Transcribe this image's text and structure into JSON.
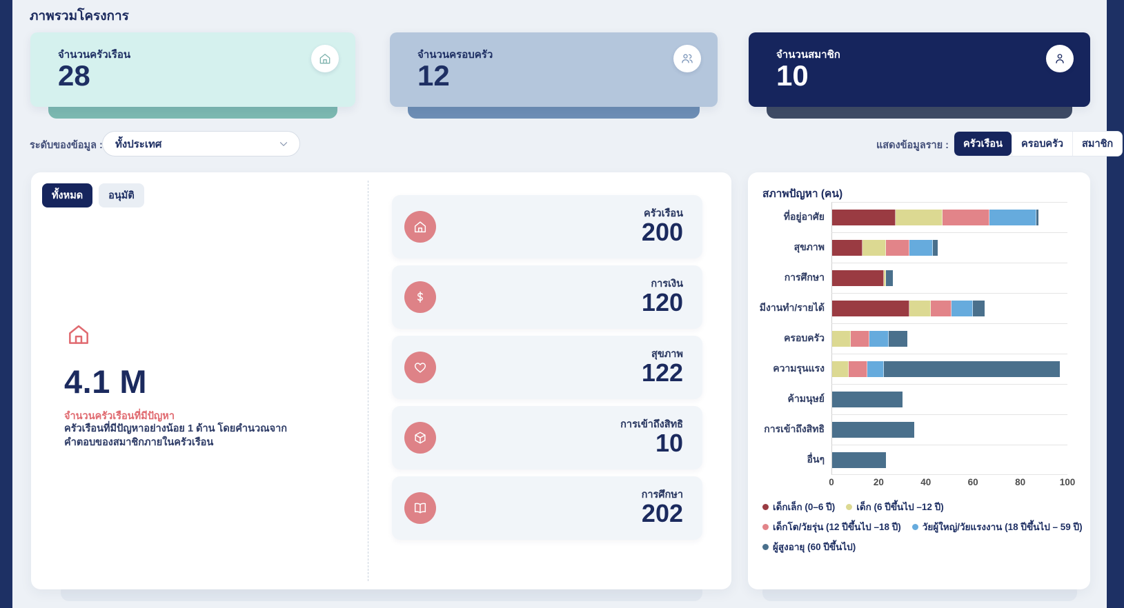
{
  "page": {
    "title": "ภาพรวมโครงการ"
  },
  "summary_cards": [
    {
      "label": "จำนวนครัวเรือน",
      "value": "28",
      "icon": "house"
    },
    {
      "label": "จำนวนครอบครัว",
      "value": "12",
      "icon": "people"
    },
    {
      "label": "จำนวนสมาชิก",
      "value": "10",
      "icon": "person"
    }
  ],
  "filters": {
    "level_label": "ระดับของข้อมูล :",
    "level_value": "ทั้งประเทศ",
    "display_label": "แสดงข้อมูลราย :",
    "display_options": [
      {
        "label": "ครัวเรือน",
        "active": true
      },
      {
        "label": "ครอบครัว",
        "active": false
      },
      {
        "label": "สมาชิก",
        "active": false
      }
    ]
  },
  "left_panel": {
    "tabs": [
      {
        "label": "ทั้งหมด",
        "active": true
      },
      {
        "label": "อนุมัติ",
        "active": false
      }
    ],
    "big_value": "4.1 M",
    "highlight_label": "จำนวนครัวเรือนที่มีปัญหา",
    "description": "ครัวเรือนที่มีปัญหาอย่างน้อย 1 ด้าน โดยคำนวณจากคำตอบของสมาชิกภายในครัวเรือน"
  },
  "problem_cards": [
    {
      "label": "ครัวเรือน",
      "value": "200",
      "icon": "house"
    },
    {
      "label": "การเงิน",
      "value": "120",
      "icon": "dollar"
    },
    {
      "label": "สุขภาพ",
      "value": "122",
      "icon": "heart"
    },
    {
      "label": "การเข้าถึงสิทธิ",
      "value": "10",
      "icon": "package"
    },
    {
      "label": "การศึกษา",
      "value": "202",
      "icon": "book"
    }
  ],
  "chart_data": {
    "type": "bar",
    "orientation": "horizontal",
    "stacked": true,
    "title": "สภาพปัญหา (คน)",
    "categories": [
      "ที่อยู่อาศัย",
      "สุขภาพ",
      "การศึกษา",
      "มีงานทำ/รายได้",
      "ครอบครัว",
      "ความรุนแรง",
      "ค้ามนุษย์",
      "การเข้าถึงสิทธิ",
      "อื่นๆ"
    ],
    "series": [
      {
        "name": "เด็กเล็ก (0–6 ปี)",
        "color": "#9a3b42",
        "values": [
          27,
          13,
          22,
          33,
          0,
          0,
          0,
          0,
          0
        ]
      },
      {
        "name": "เด็ก (6 ปีขึ้นไป –12 ปี)",
        "color": "#dcd992",
        "values": [
          20,
          10,
          1,
          9,
          8,
          7,
          0,
          0,
          0
        ]
      },
      {
        "name": "เด็กโต/วัยรุ่น (12 ปีขึ้นไป –18 ปี)",
        "color": "#e28489",
        "values": [
          20,
          10,
          0,
          9,
          8,
          8,
          0,
          0,
          0
        ]
      },
      {
        "name": "วัยผู้ใหญ่/วัยแรงงาน (18 ปีขึ้นไป – 59 ปี)",
        "color": "#66abdd",
        "values": [
          20,
          10,
          0,
          9,
          8,
          7,
          0,
          0,
          0
        ]
      },
      {
        "name": "ผู้สูงอายุ (60 ปีขึ้นไป)",
        "color": "#4a708c",
        "values": [
          1,
          2,
          3,
          5,
          8,
          75,
          30,
          35,
          23
        ]
      }
    ],
    "x_ticks": [
      0,
      20,
      40,
      60,
      80,
      100
    ],
    "xlim": [
      0,
      100
    ],
    "legend_position": "bottom",
    "grid": true
  }
}
